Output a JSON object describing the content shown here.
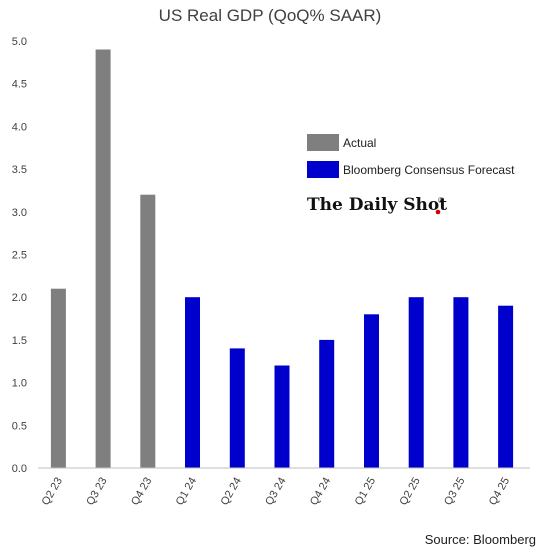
{
  "chart_data": {
    "type": "bar",
    "title": "US Real GDP (QoQ% SAAR)",
    "categories": [
      "Q2 23",
      "Q3 23",
      "Q4 23",
      "Q1 24",
      "Q2 24",
      "Q3 24",
      "Q4 24",
      "Q1 25",
      "Q2 25",
      "Q3 25",
      "Q4 25"
    ],
    "series": [
      {
        "name": "Actual",
        "color": "#7f7f7f",
        "values": [
          2.1,
          4.9,
          3.2,
          null,
          null,
          null,
          null,
          null,
          null,
          null,
          null
        ]
      },
      {
        "name": "Bloomberg Consensus Forecast",
        "color": "#0000cc",
        "values": [
          null,
          null,
          null,
          2.0,
          1.4,
          1.2,
          1.5,
          1.8,
          2.0,
          2.0,
          1.9
        ]
      }
    ],
    "ylim": [
      0,
      5.0
    ],
    "yticks": [
      "0.0",
      "0.5",
      "1.0",
      "1.5",
      "2.0",
      "2.5",
      "3.0",
      "3.5",
      "4.0",
      "4.5",
      "5.0"
    ],
    "grid": false,
    "legend_position": "upper-right"
  },
  "brand": "The Daily Shot",
  "brand_mark": "®",
  "source": "Source: Bloomberg"
}
